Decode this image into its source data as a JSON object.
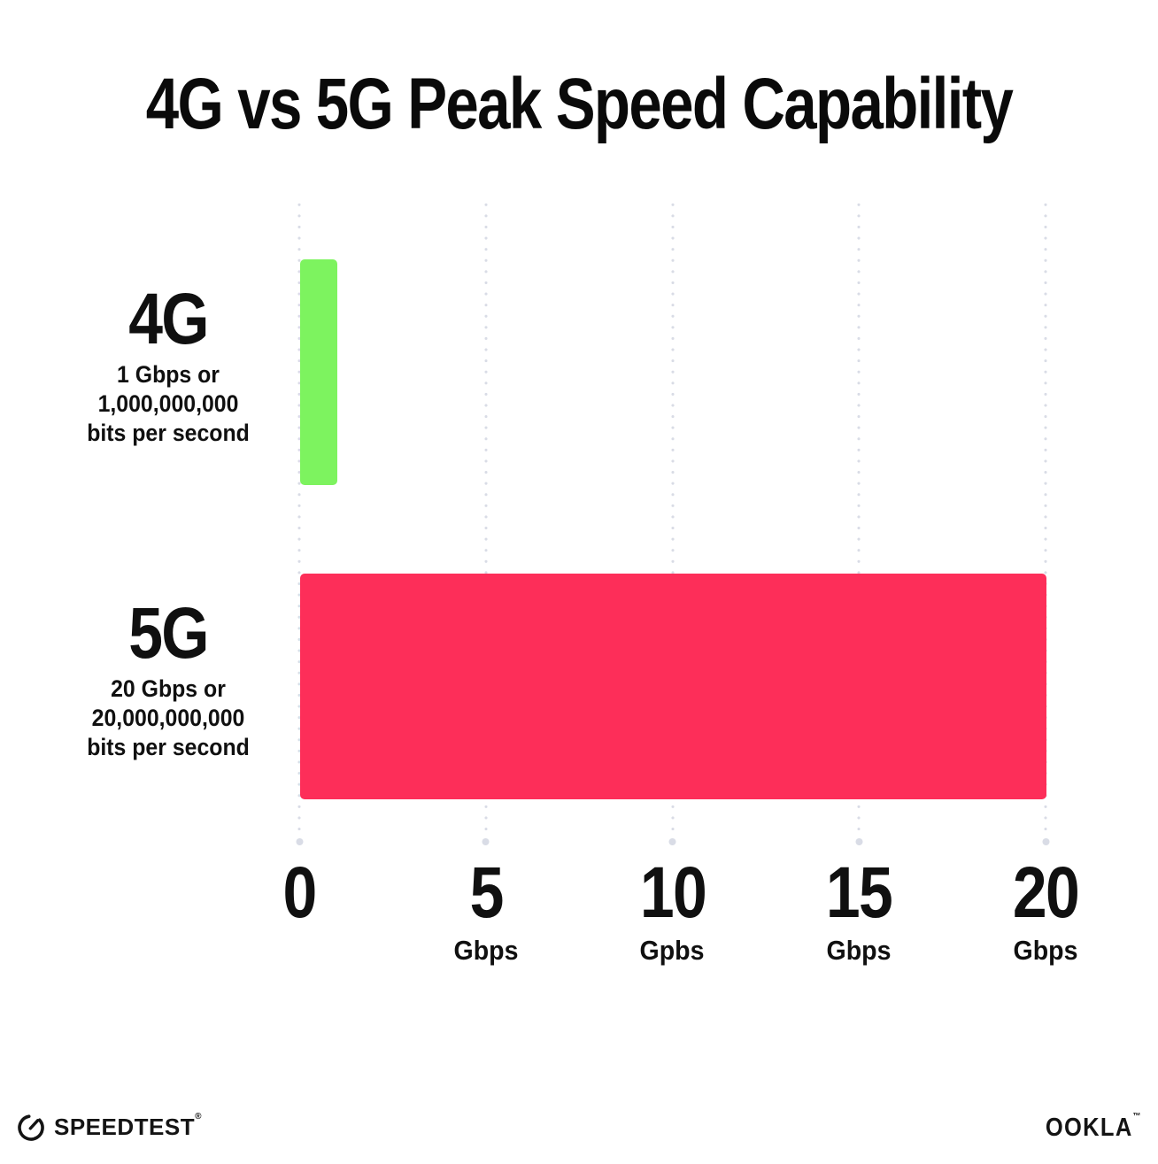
{
  "title": "4G vs 5G Peak Speed Capability",
  "chart_data": {
    "type": "bar",
    "orientation": "horizontal",
    "title": "4G vs 5G Peak Speed Capability",
    "categories": [
      "4G",
      "5G"
    ],
    "values": [
      1,
      20
    ],
    "bar_colors": [
      "#7df35f",
      "#fd2e59"
    ],
    "xlabel_unit": "Gbps",
    "xlim": [
      0,
      20
    ],
    "x_tick_values": [
      0,
      5,
      10,
      15,
      20
    ],
    "grid": "dotted-vertical-gridlines",
    "legend": "none",
    "annotations": [
      "4G: 1 Gbps or 1,000,000,000 bits per second",
      "5G: 20 Gbps or 20,000,000,000 bits per second"
    ]
  },
  "bars": [
    {
      "label": "4G",
      "desc_line1": "1 Gbps or",
      "desc_line2": "1,000,000,000",
      "desc_line3": "bits per second"
    },
    {
      "label": "5G",
      "desc_line1": "20 Gbps or",
      "desc_line2": "20,000,000,000",
      "desc_line3": "bits per second"
    }
  ],
  "x_axis": {
    "ticks": [
      {
        "value": 0,
        "number": "0",
        "unit": ""
      },
      {
        "value": 5,
        "number": "5",
        "unit": "Gbps"
      },
      {
        "value": 10,
        "number": "10",
        "unit": "Gpbs"
      },
      {
        "value": 15,
        "number": "15",
        "unit": "Gbps"
      },
      {
        "value": 20,
        "number": "20",
        "unit": "Gbps"
      }
    ]
  },
  "footer": {
    "speedtest_label": "SPEEDTEST",
    "speedtest_trademark": "®",
    "ookla_label": "OOKLA",
    "ookla_trademark": "™"
  },
  "colors": {
    "bar_4g": "#7df35f",
    "bar_5g": "#fd2e59",
    "gridline": "#d9dce6",
    "text": "#101010",
    "background": "#ffffff"
  }
}
